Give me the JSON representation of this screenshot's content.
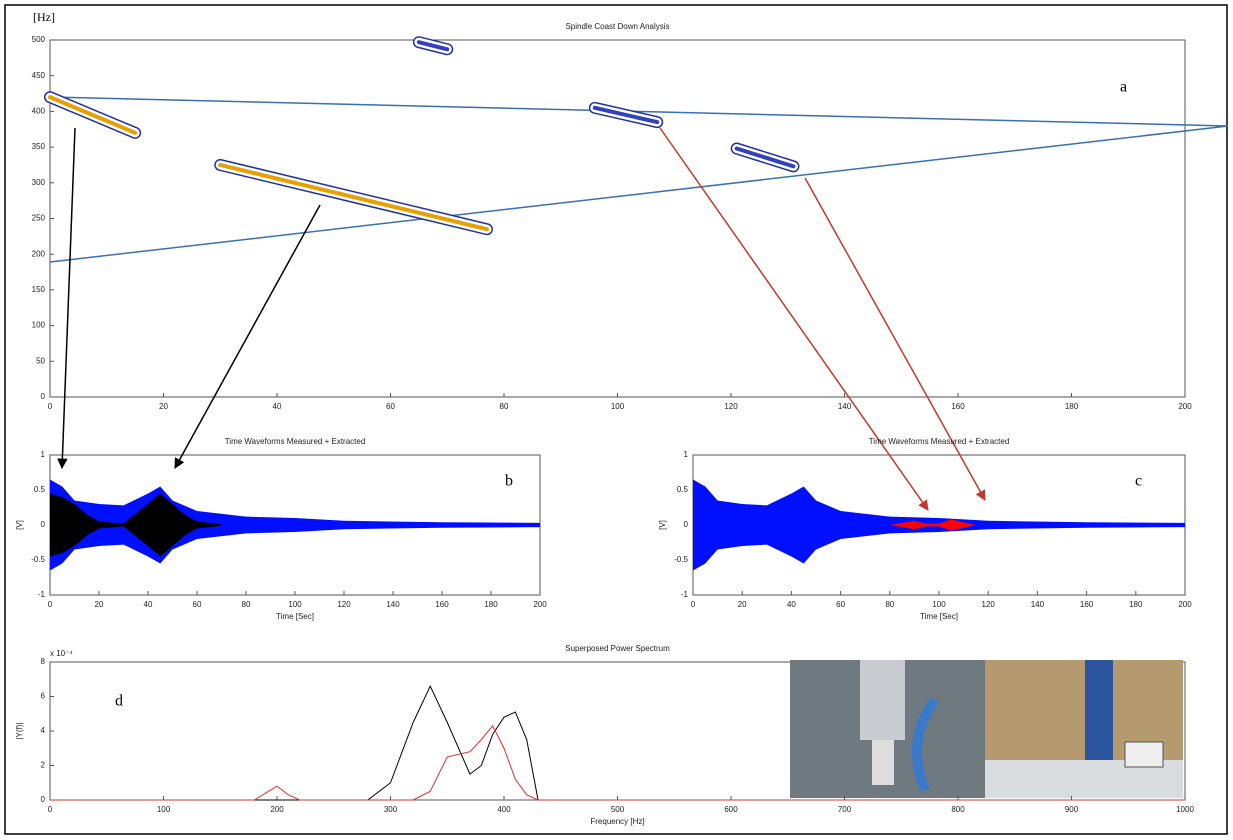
{
  "chart_data": [
    {
      "type": "contour",
      "title": "Spindle Coast Down Analysis",
      "ylabel": "[Hz]",
      "panel_label": "a",
      "xlim": [
        0,
        200
      ],
      "ylim": [
        0,
        500
      ],
      "xticks": [
        0,
        20,
        40,
        60,
        80,
        100,
        120,
        140,
        160,
        180,
        200
      ],
      "yticks": [
        0,
        50,
        100,
        150,
        200,
        250,
        300,
        350,
        400,
        450,
        500
      ],
      "ridges": [
        {
          "color": "#e8a000",
          "x": [
            0,
            15
          ],
          "values": [
            420,
            370
          ]
        },
        {
          "color": "#e8a000",
          "x": [
            30,
            77
          ],
          "values": [
            325,
            235
          ]
        },
        {
          "color": "#3040c0",
          "x": [
            65,
            70
          ],
          "values": [
            497,
            487
          ]
        },
        {
          "color": "#3040c0",
          "x": [
            96,
            107
          ],
          "values": [
            405,
            385
          ]
        },
        {
          "color": "#3040c0",
          "x": [
            121,
            131
          ],
          "values": [
            348,
            323
          ]
        }
      ]
    },
    {
      "type": "area",
      "title": "Time Waveforms Measured + Extracted",
      "xlabel": "Time [Sec]",
      "ylabel": "[V]",
      "panel_label": "b",
      "xlim": [
        0,
        200
      ],
      "ylim": [
        -1,
        1
      ],
      "xticks": [
        0,
        20,
        40,
        60,
        80,
        100,
        120,
        140,
        160,
        180,
        200
      ],
      "yticks": [
        -1,
        -0.5,
        0,
        0.5,
        1
      ],
      "series": [
        {
          "color": "#0010ff",
          "x": [
            0,
            5,
            10,
            20,
            30,
            40,
            45,
            50,
            60,
            80,
            100,
            120,
            160,
            200
          ],
          "values": [
            0.65,
            0.55,
            0.35,
            0.3,
            0.28,
            0.45,
            0.55,
            0.35,
            0.2,
            0.12,
            0.1,
            0.06,
            0.04,
            0.03
          ]
        },
        {
          "color": "#000000",
          "x": [
            0,
            5,
            10,
            15,
            20,
            30,
            40,
            45,
            50,
            55,
            60,
            70
          ],
          "values": [
            0.45,
            0.4,
            0.3,
            0.15,
            0.05,
            0.02,
            0.3,
            0.45,
            0.3,
            0.15,
            0.05,
            0.01
          ]
        }
      ]
    },
    {
      "type": "area",
      "title": "Time Waveforms Measured + Extracted",
      "xlabel": "Time [Sec]",
      "ylabel": "[V]",
      "panel_label": "c",
      "xlim": [
        0,
        200
      ],
      "ylim": [
        -1,
        1
      ],
      "xticks": [
        0,
        20,
        40,
        60,
        80,
        100,
        120,
        140,
        160,
        180,
        200
      ],
      "yticks": [
        -1,
        -0.5,
        0,
        0.5,
        1
      ],
      "series": [
        {
          "color": "#0010ff",
          "x": [
            0,
            5,
            10,
            20,
            30,
            40,
            45,
            50,
            60,
            80,
            100,
            120,
            160,
            200
          ],
          "values": [
            0.65,
            0.55,
            0.35,
            0.3,
            0.28,
            0.45,
            0.55,
            0.35,
            0.2,
            0.12,
            0.1,
            0.06,
            0.04,
            0.03
          ]
        },
        {
          "color": "#ff0000",
          "x": [
            80,
            85,
            90,
            95,
            100,
            105,
            110,
            115
          ],
          "values": [
            0,
            0.03,
            0.06,
            0.02,
            0.02,
            0.08,
            0.04,
            0
          ]
        }
      ]
    },
    {
      "type": "line",
      "title": "Superposed Power Spectrum",
      "xlabel": "Frequency [Hz]",
      "ylabel": "|Y(f)|",
      "exponent": "x 10⁻⁴",
      "panel_label": "d",
      "xlim": [
        0,
        1000
      ],
      "ylim": [
        0,
        8
      ],
      "xticks": [
        0,
        100,
        200,
        300,
        400,
        500,
        600,
        700,
        800,
        900,
        1000
      ],
      "yticks": [
        0,
        2,
        4,
        6,
        8
      ],
      "series": [
        {
          "color": "#000000",
          "x": [
            0,
            180,
            190,
            200,
            210,
            220,
            280,
            300,
            320,
            335,
            350,
            370,
            380,
            390,
            400,
            410,
            420,
            430,
            1000
          ],
          "values": [
            0,
            0,
            0,
            0,
            0,
            0,
            0,
            1,
            4.5,
            6.6,
            4.5,
            1.5,
            2,
            3.8,
            4.8,
            5.1,
            3.5,
            0,
            0
          ]
        },
        {
          "color": "#e03030",
          "x": [
            0,
            180,
            190,
            200,
            210,
            220,
            280,
            300,
            320,
            335,
            350,
            370,
            380,
            390,
            400,
            410,
            420,
            430,
            1000
          ],
          "values": [
            0,
            0,
            0.4,
            0.8,
            0.3,
            0,
            0,
            0,
            0,
            0.5,
            2.5,
            2.8,
            3.5,
            4.3,
            3,
            1.2,
            0.3,
            0,
            0
          ]
        }
      ]
    }
  ]
}
